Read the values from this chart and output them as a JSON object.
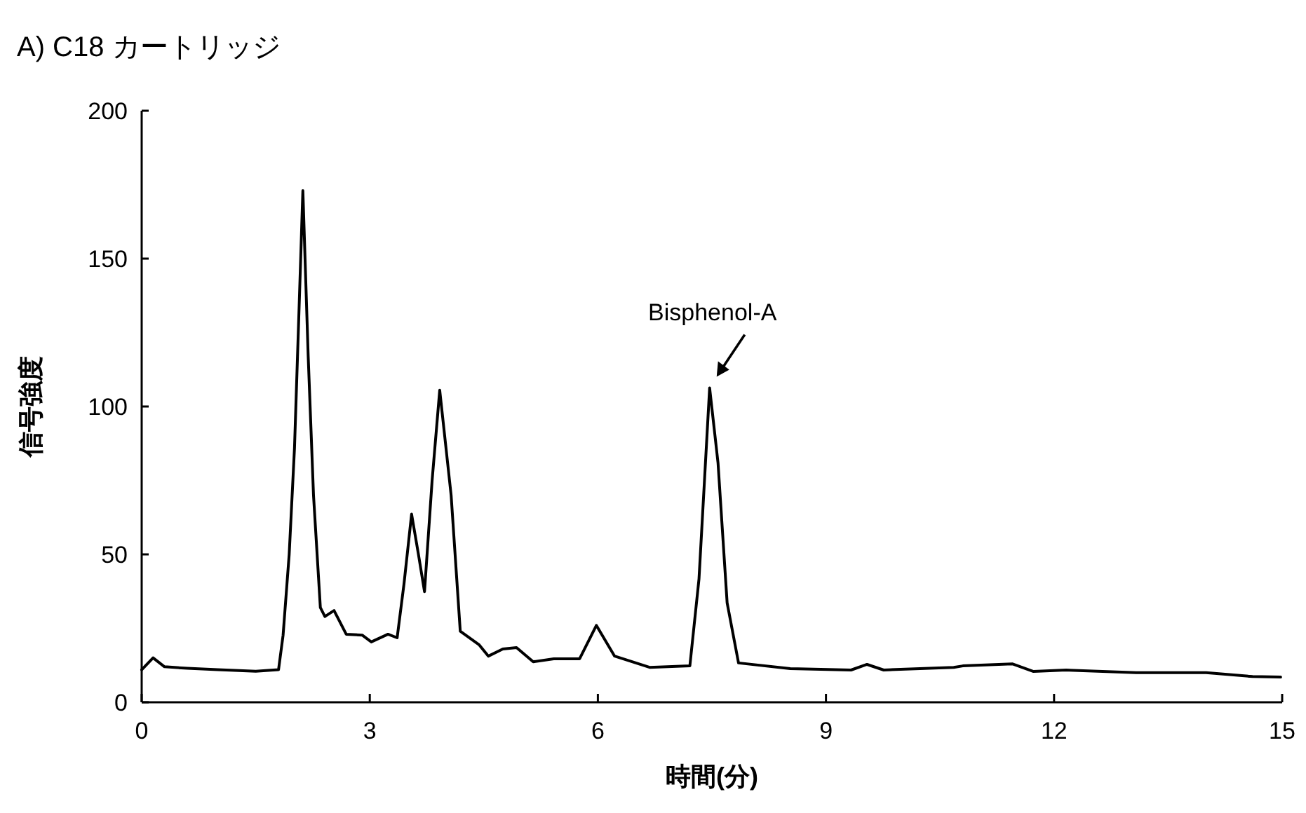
{
  "chart_data": {
    "type": "line",
    "title": "A) C18 カートリッジ",
    "xlabel": "時間(分)",
    "ylabel": "信号強度",
    "xlim": [
      0,
      15
    ],
    "ylim": [
      0,
      200
    ],
    "xticks": [
      0,
      3,
      6,
      9,
      12,
      15
    ],
    "yticks": [
      0,
      50,
      100,
      150,
      200
    ],
    "grid": false,
    "x": [
      0,
      0.15,
      0.3,
      0.6,
      1.0,
      1.5,
      1.8,
      1.86,
      1.94,
      2.01,
      2.07,
      2.12,
      2.19,
      2.26,
      2.35,
      2.41,
      2.53,
      2.69,
      2.9,
      3.02,
      3.24,
      3.36,
      3.45,
      3.55,
      3.64,
      3.72,
      3.82,
      3.92,
      4.07,
      4.19,
      4.44,
      4.56,
      4.75,
      4.93,
      5.15,
      5.42,
      5.76,
      5.98,
      6.22,
      6.68,
      7.21,
      7.33,
      7.47,
      7.58,
      7.7,
      7.85,
      8.53,
      9.33,
      9.54,
      9.76,
      10.68,
      10.8,
      11.45,
      11.73,
      12.16,
      13.08,
      14.0,
      14.61,
      14.98
    ],
    "series": [
      {
        "color": "#000000",
        "values": [
          11,
          15,
          12,
          11.5,
          11,
          10.5,
          11,
          22.7,
          50,
          86,
          133,
          173,
          117,
          70,
          32,
          29,
          31,
          23,
          22.7,
          20.4,
          23,
          21.8,
          40,
          63.6,
          50,
          37.4,
          75,
          105.5,
          70,
          24,
          19.4,
          15.6,
          18,
          18.5,
          13.7,
          14.7,
          14.7,
          26,
          15.6,
          11.8,
          12.3,
          41.7,
          106.3,
          81,
          33.6,
          13.3,
          11.4,
          10.9,
          12.8,
          10.9,
          11.8,
          12.3,
          13,
          10.4,
          10.9,
          10,
          10,
          8.7,
          8.5
        ]
      }
    ],
    "annotations": [
      {
        "text": "Bisphenol-A",
        "x": 7.47,
        "y": 106.3
      }
    ]
  }
}
